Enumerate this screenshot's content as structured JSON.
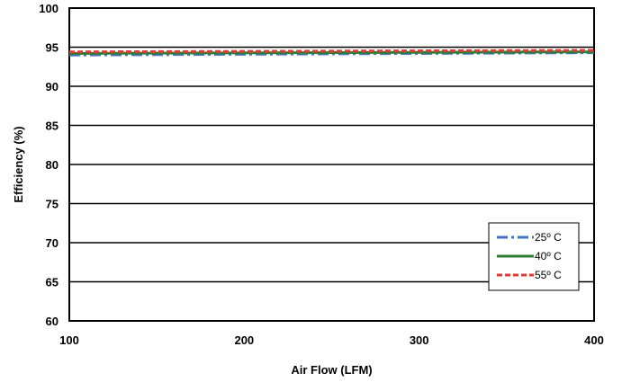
{
  "chart_data": {
    "type": "line",
    "xlabel": "Air Flow (LFM)",
    "ylabel": "Efficiency (%)",
    "xlim": [
      100,
      400
    ],
    "ylim": [
      60,
      100
    ],
    "x_ticks": [
      "100",
      "200",
      "300",
      "400"
    ],
    "y_ticks": [
      "60",
      "65",
      "70",
      "75",
      "80",
      "85",
      "90",
      "95",
      "100"
    ],
    "grid": "horizontal",
    "legend_position": "bottom-right",
    "x": [
      100,
      400
    ],
    "series": [
      {
        "name": "25º C",
        "values": [
          94.0,
          94.3
        ],
        "color": "#4472C4",
        "dash": "dash-dot"
      },
      {
        "name": "40º C",
        "values": [
          94.2,
          94.4
        ],
        "color": "#2E7D32",
        "dash": "solid"
      },
      {
        "name": "55º C",
        "values": [
          94.4,
          94.6
        ],
        "color": "#E53935",
        "dash": "dashed"
      }
    ]
  }
}
